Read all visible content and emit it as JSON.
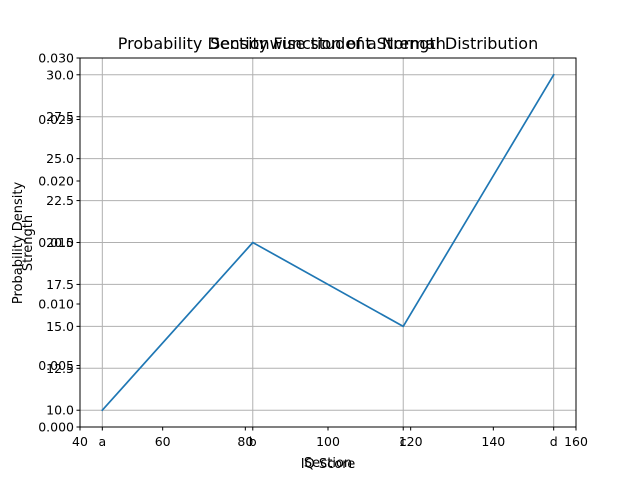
{
  "chart_data": [
    {
      "type": "line",
      "title": "Probability Density Function of a Normal Distribution",
      "xlabel": "IQ Score",
      "ylabel": "Probability Density",
      "xlim": [
        40,
        160
      ],
      "ylim": [
        0.0,
        0.03
      ],
      "xticks": [
        40,
        60,
        80,
        100,
        120,
        140,
        160
      ],
      "xtick_labels": [
        "40",
        "60",
        "80",
        "100",
        "120",
        "140",
        "160"
      ],
      "yticks": [
        0.0,
        0.005,
        0.01,
        0.015,
        0.02,
        0.025,
        0.03
      ],
      "ytick_labels": [
        "0.000",
        "0.005",
        "0.010",
        "0.015",
        "0.020",
        "0.025",
        "0.030"
      ],
      "grid": false,
      "series": []
    },
    {
      "type": "line",
      "title": "Sectionwise student Strength",
      "xlabel": "Section",
      "ylabel": "Strength",
      "categories": [
        "a",
        "b",
        "c",
        "d"
      ],
      "ylim": [
        9.0,
        31.0
      ],
      "yticks": [
        10.0,
        12.5,
        15.0,
        17.5,
        20.0,
        22.5,
        25.0,
        27.5,
        30.0
      ],
      "ytick_labels": [
        "10.0",
        "12.5",
        "15.0",
        "17.5",
        "20.0",
        "22.5",
        "25.0",
        "27.5",
        "30.0"
      ],
      "grid": true,
      "color": "#1f77b4",
      "series": [
        {
          "values": [
            10,
            20,
            15,
            30
          ]
        }
      ]
    }
  ]
}
